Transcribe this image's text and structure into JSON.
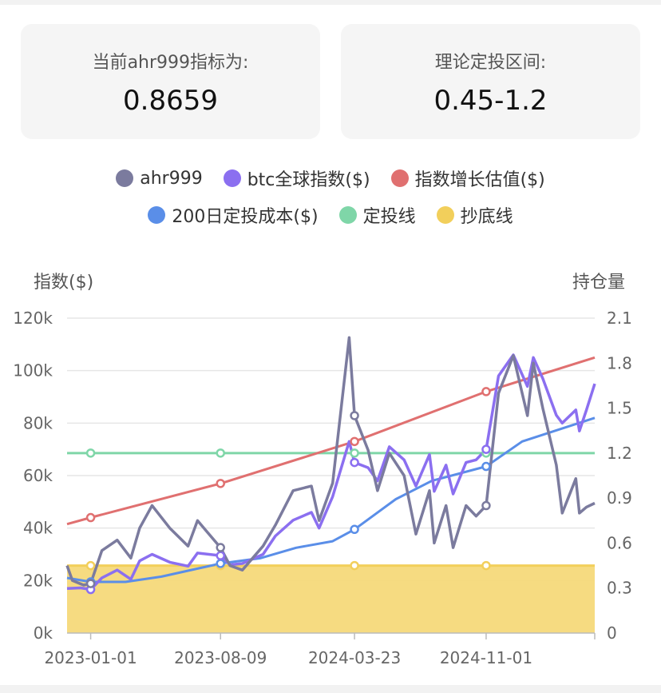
{
  "cards": {
    "left": {
      "label": "当前ahr999指标为:",
      "value": "0.8659"
    },
    "right": {
      "label": "理论定投区间:",
      "value": "0.45-1.2"
    }
  },
  "legend": [
    {
      "name": "ahr999",
      "color": "#7b7b9e"
    },
    {
      "name": "btc全球指数($)",
      "color": "#8b6ff0"
    },
    {
      "name": "指数增长估值($)",
      "color": "#e07070"
    },
    {
      "name": "200日定投成本($)",
      "color": "#5a8ee8"
    },
    {
      "name": "定投线",
      "color": "#7fd6a8"
    },
    {
      "name": "抄底线",
      "color": "#f2cf5b"
    }
  ],
  "chart_data": {
    "type": "line",
    "y_left_label": "指数($)",
    "y_right_label": "持仓量",
    "y_left_ticks": [
      "0k",
      "20k",
      "40k",
      "60k",
      "80k",
      "100k",
      "120k"
    ],
    "y_left_range": [
      0,
      120000
    ],
    "y_right_ticks": [
      "0",
      "0.3",
      "0.6",
      "0.9",
      "1.2",
      "1.5",
      "1.8",
      "2.1"
    ],
    "y_right_range": [
      0,
      2.1
    ],
    "x_ticks": [
      "2023-01-01",
      "2023-08-09",
      "2024-03-23",
      "2024-11-01"
    ],
    "x_range": [
      "2022-11-22",
      "2025-05-04"
    ],
    "series": [
      {
        "name": "btc全球指数($)",
        "axis": "left",
        "color": "#8b6ff0",
        "points": [
          [
            "2022-11-22",
            17000
          ],
          [
            "2022-12-15",
            17200
          ],
          [
            "2023-01-01",
            16600
          ],
          [
            "2023-01-20",
            21000
          ],
          [
            "2023-02-15",
            24000
          ],
          [
            "2023-03-10",
            20500
          ],
          [
            "2023-03-25",
            27500
          ],
          [
            "2023-04-15",
            30000
          ],
          [
            "2023-05-15",
            27000
          ],
          [
            "2023-06-15",
            25500
          ],
          [
            "2023-07-01",
            30500
          ],
          [
            "2023-08-09",
            29500
          ],
          [
            "2023-08-25",
            26000
          ],
          [
            "2023-09-15",
            26500
          ],
          [
            "2023-10-20",
            30000
          ],
          [
            "2023-11-10",
            37000
          ],
          [
            "2023-12-10",
            43000
          ],
          [
            "2024-01-10",
            46000
          ],
          [
            "2024-01-23",
            40000
          ],
          [
            "2024-02-15",
            52000
          ],
          [
            "2024-03-14",
            73000
          ],
          [
            "2024-03-23",
            65000
          ],
          [
            "2024-04-15",
            63000
          ],
          [
            "2024-05-01",
            58000
          ],
          [
            "2024-05-21",
            71000
          ],
          [
            "2024-06-15",
            66000
          ],
          [
            "2024-07-05",
            56000
          ],
          [
            "2024-07-28",
            68000
          ],
          [
            "2024-08-05",
            54000
          ],
          [
            "2024-08-25",
            64000
          ],
          [
            "2024-09-06",
            53000
          ],
          [
            "2024-09-28",
            65000
          ],
          [
            "2024-10-15",
            66000
          ],
          [
            "2024-11-01",
            70000
          ],
          [
            "2024-11-22",
            98000
          ],
          [
            "2024-12-17",
            106000
          ],
          [
            "2025-01-10",
            94000
          ],
          [
            "2025-01-20",
            105000
          ],
          [
            "2025-02-05",
            97000
          ],
          [
            "2025-02-28",
            83000
          ],
          [
            "2025-03-10",
            80000
          ],
          [
            "2025-04-02",
            85000
          ],
          [
            "2025-04-08",
            77000
          ],
          [
            "2025-04-20",
            85000
          ],
          [
            "2025-05-04",
            95000
          ]
        ]
      },
      {
        "name": "ahr999",
        "axis": "right",
        "color": "#7b7b9e",
        "points": [
          [
            "2022-11-22",
            0.45
          ],
          [
            "2022-12-01",
            0.35
          ],
          [
            "2022-12-20",
            0.32
          ],
          [
            "2023-01-01",
            0.33
          ],
          [
            "2023-01-20",
            0.55
          ],
          [
            "2023-02-15",
            0.62
          ],
          [
            "2023-03-10",
            0.5
          ],
          [
            "2023-03-25",
            0.7
          ],
          [
            "2023-04-15",
            0.85
          ],
          [
            "2023-05-15",
            0.7
          ],
          [
            "2023-06-15",
            0.58
          ],
          [
            "2023-07-01",
            0.75
          ],
          [
            "2023-08-09",
            0.57
          ],
          [
            "2023-08-25",
            0.45
          ],
          [
            "2023-09-15",
            0.42
          ],
          [
            "2023-10-20",
            0.58
          ],
          [
            "2023-11-10",
            0.72
          ],
          [
            "2023-12-10",
            0.95
          ],
          [
            "2024-01-10",
            0.98
          ],
          [
            "2024-01-23",
            0.75
          ],
          [
            "2024-02-15",
            1.0
          ],
          [
            "2024-03-14",
            1.97
          ],
          [
            "2024-03-23",
            1.45
          ],
          [
            "2024-04-15",
            1.22
          ],
          [
            "2024-05-01",
            0.95
          ],
          [
            "2024-05-21",
            1.2
          ],
          [
            "2024-06-15",
            1.05
          ],
          [
            "2024-07-05",
            0.66
          ],
          [
            "2024-07-28",
            0.95
          ],
          [
            "2024-08-05",
            0.6
          ],
          [
            "2024-08-25",
            0.85
          ],
          [
            "2024-09-06",
            0.57
          ],
          [
            "2024-09-28",
            0.85
          ],
          [
            "2024-10-15",
            0.78
          ],
          [
            "2024-11-01",
            0.85
          ],
          [
            "2024-11-22",
            1.6
          ],
          [
            "2024-12-17",
            1.85
          ],
          [
            "2025-01-10",
            1.45
          ],
          [
            "2025-01-20",
            1.8
          ],
          [
            "2025-02-05",
            1.5
          ],
          [
            "2025-02-28",
            1.12
          ],
          [
            "2025-03-10",
            0.8
          ],
          [
            "2025-04-02",
            1.03
          ],
          [
            "2025-04-08",
            0.8
          ],
          [
            "2025-04-20",
            0.84
          ],
          [
            "2025-05-04",
            0.8659
          ]
        ]
      },
      {
        "name": "指数增长估值($)",
        "axis": "left",
        "color": "#e07070",
        "points": [
          [
            "2022-11-22",
            41500
          ],
          [
            "2023-01-01",
            44000
          ],
          [
            "2023-08-09",
            57000
          ],
          [
            "2024-03-23",
            73000
          ],
          [
            "2024-11-01",
            92000
          ],
          [
            "2025-05-04",
            105000
          ]
        ]
      },
      {
        "name": "200日定投成本($)",
        "axis": "left",
        "color": "#5a8ee8",
        "points": [
          [
            "2022-11-22",
            21000
          ],
          [
            "2023-01-01",
            19500
          ],
          [
            "2023-03-01",
            19500
          ],
          [
            "2023-05-01",
            21500
          ],
          [
            "2023-08-09",
            26500
          ],
          [
            "2023-10-15",
            28500
          ],
          [
            "2023-12-15",
            32500
          ],
          [
            "2024-02-15",
            35000
          ],
          [
            "2024-03-23",
            39500
          ],
          [
            "2024-06-01",
            51000
          ],
          [
            "2024-08-01",
            58000
          ],
          [
            "2024-11-01",
            63500
          ],
          [
            "2025-01-01",
            73000
          ],
          [
            "2025-05-04",
            82000
          ]
        ]
      },
      {
        "name": "定投线",
        "axis": "right",
        "color": "#7fd6a8",
        "points": [
          [
            "2022-11-22",
            1.2
          ],
          [
            "2025-05-04",
            1.2
          ]
        ]
      },
      {
        "name": "抄底线",
        "axis": "right",
        "color": "#f2cf5b",
        "points": [
          [
            "2022-11-22",
            0.45
          ],
          [
            "2025-05-04",
            0.45
          ]
        ]
      }
    ]
  }
}
